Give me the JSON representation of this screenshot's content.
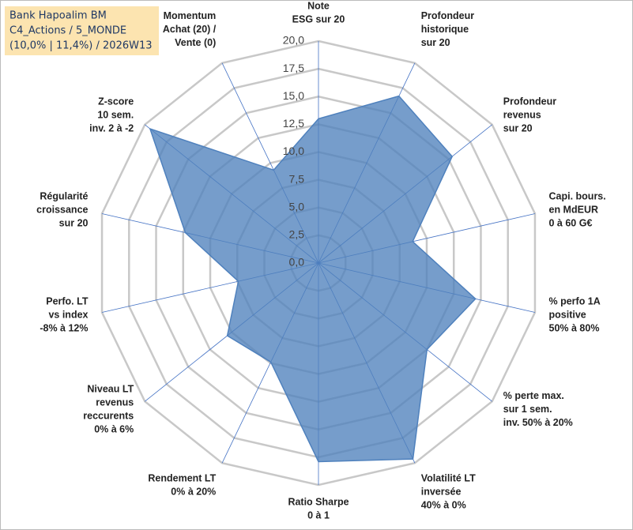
{
  "chart_data": {
    "type": "radar",
    "title": [
      "Bank Hapoalim BM",
      "C4_Actions / 5_MONDE",
      "(10,0% | 11,4%) / 2026W13"
    ],
    "categories": [
      [
        "Note",
        "ESG sur 20"
      ],
      [
        "Profondeur",
        "historique",
        "sur 20"
      ],
      [
        "Profondeur",
        "revenus",
        "sur 20"
      ],
      [
        "Capi. bours.",
        "en MdEUR",
        "0 à 60 G€"
      ],
      [
        "% perfo 1A",
        "positive",
        "50% à 80%"
      ],
      [
        "% perte max.",
        "sur 1 sem.",
        "inv. 50% à 20%"
      ],
      [
        "Volatilité LT",
        "inversée",
        "40% à 0%"
      ],
      [
        "Ratio Sharpe",
        "0 à 1"
      ],
      [
        "Rendement LT",
        "0% à 20%"
      ],
      [
        "Niveau LT",
        "revenus",
        "reccurents",
        "0% à 6%"
      ],
      [
        "Perfo. LT",
        "vs index",
        "-8% à 12%"
      ],
      [
        "Régularité",
        "croissance",
        "sur 20"
      ],
      [
        "Z-score",
        "10 sem.",
        "inv. 2 à -2"
      ],
      [
        "Momentum",
        "Achat (20) /",
        "Vente (0)"
      ]
    ],
    "values": [
      13.0,
      16.7,
      15.4,
      8.7,
      14.5,
      12.5,
      19.6,
      17.9,
      9.9,
      10.5,
      7.4,
      12.3,
      19.4,
      9.3
    ],
    "color": "#4f81bd",
    "ylim": [
      0,
      20
    ],
    "yticks": [
      {
        "value": 0,
        "label": "0,0"
      },
      {
        "value": 2.5,
        "label": "2,5"
      },
      {
        "value": 5,
        "label": "5,0"
      },
      {
        "value": 7.5,
        "label": "7,5"
      },
      {
        "value": 10,
        "label": "10,0"
      },
      {
        "value": 12.5,
        "label": "12,5"
      },
      {
        "value": 15,
        "label": "15,0"
      },
      {
        "value": 17.5,
        "label": "17,5"
      },
      {
        "value": 20,
        "label": "20,0"
      }
    ],
    "grid": true
  }
}
